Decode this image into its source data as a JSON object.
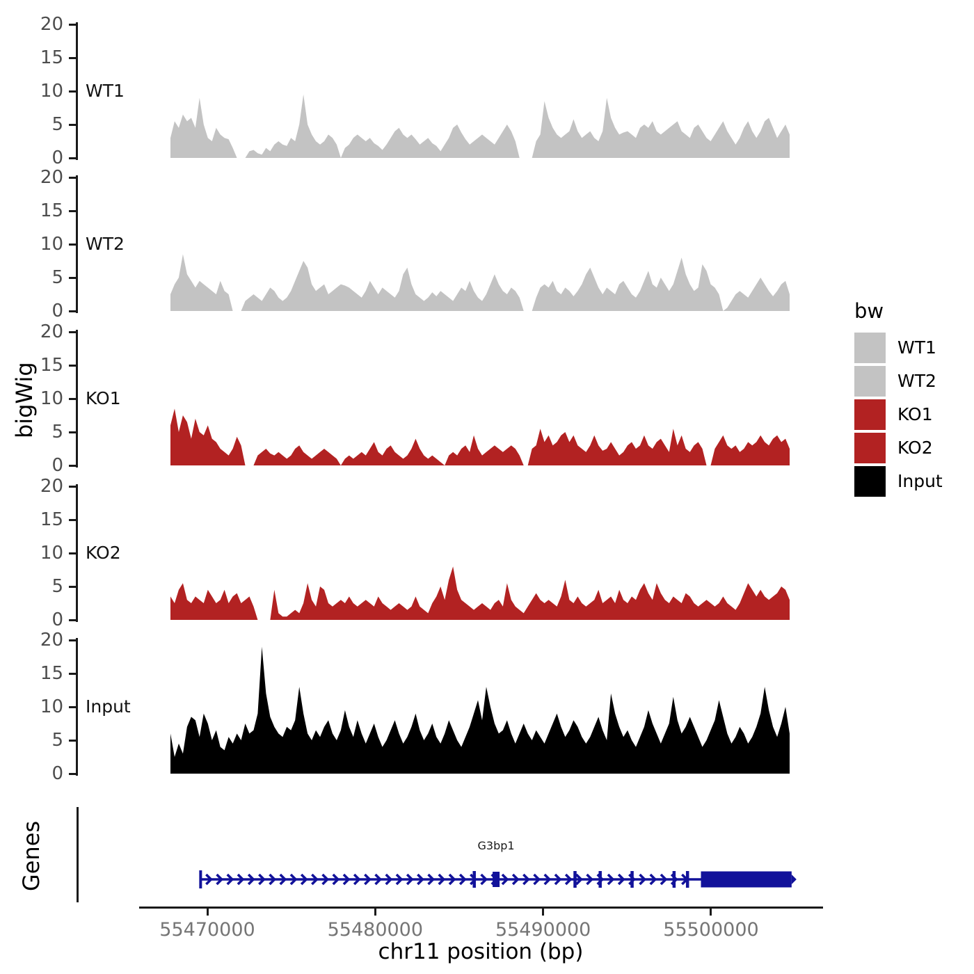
{
  "y_axis": {
    "label": "bigWig",
    "ticks": [
      0,
      5,
      10,
      15,
      20
    ],
    "tick_labels": [
      "0",
      "5",
      "10",
      "15",
      "20"
    ]
  },
  "x_axis": {
    "label": "chr11 position (bp)",
    "ticks": [
      {
        "bp": 55470000,
        "label": "55470000"
      },
      {
        "bp": 55480000,
        "label": "55480000"
      },
      {
        "bp": 55490000,
        "label": "55490000"
      },
      {
        "bp": 55500000,
        "label": "55500000"
      }
    ]
  },
  "genes_panel": {
    "label": "Genes"
  },
  "legend": {
    "title": "bw",
    "entries": [
      {
        "label": "WT1",
        "color": "#C3C3C3"
      },
      {
        "label": "WT2",
        "color": "#C3C3C3"
      },
      {
        "label": "KO1",
        "color": "#B22222"
      },
      {
        "label": "KO2",
        "color": "#B22222"
      },
      {
        "label": "Input",
        "color": "#000000"
      }
    ]
  },
  "colors": {
    "wt": "#C3C3C3",
    "ko": "#B22222",
    "input": "#000000",
    "gene": "#12129A",
    "axis": "#1a1a1a"
  },
  "chart_data": {
    "type": "area",
    "description": "Genome browser bigWig coverage tracks with gene annotation",
    "title": "",
    "xlabel": "chr11 position (bp)",
    "ylabel": "bigWig",
    "x_ticks_bp": [
      55470000,
      55480000,
      55490000,
      55500000
    ],
    "per_track_ylim": [
      0,
      20
    ],
    "y_ticks": [
      0,
      5,
      10,
      15,
      20
    ],
    "signal_region_bp": [
      55467800,
      55504700
    ],
    "tracks": [
      {
        "name": "WT1",
        "color": "#C3C3C3",
        "values": [
          3,
          5.5,
          4.5,
          6.5,
          5.5,
          6,
          4.5,
          9,
          5,
          3,
          2.5,
          4.5,
          3.5,
          3,
          2.8,
          1.5,
          0,
          0,
          0,
          1,
          1.2,
          0.7,
          0.5,
          1.5,
          1,
          2,
          2.5,
          2,
          1.8,
          3,
          2.5,
          5,
          9.5,
          5,
          3.5,
          2.5,
          2,
          2.5,
          3.5,
          3,
          2,
          0,
          1.5,
          2,
          3,
          3.5,
          3,
          2.5,
          3,
          2.2,
          1.8,
          1.2,
          2,
          3,
          4,
          4.5,
          3.5,
          3,
          3.5,
          2.8,
          2,
          2.5,
          3,
          2.2,
          1.8,
          1,
          2,
          3,
          4.5,
          5,
          3.8,
          2.8,
          2,
          2.5,
          3,
          3.5,
          3,
          2.5,
          2,
          3,
          4,
          5,
          4,
          2.5,
          0,
          0,
          0,
          0,
          2.5,
          3.5,
          8.5,
          6,
          4.5,
          3.5,
          3,
          3.5,
          4,
          5.8,
          4,
          3,
          3.5,
          4,
          3,
          2.5,
          4,
          9,
          6,
          4.5,
          3.5,
          3.8,
          4,
          3.5,
          3,
          4.5,
          5,
          4.5,
          5.5,
          4,
          3.5,
          4,
          4.5,
          5,
          5.5,
          4,
          3.5,
          3,
          4.5,
          5,
          4,
          3,
          2.5,
          3.5,
          4.5,
          5.5,
          4,
          3,
          2,
          3,
          4.5,
          5.5,
          4,
          3,
          4,
          5.5,
          6,
          4.5,
          3,
          4,
          5,
          3.5
        ]
      },
      {
        "name": "WT2",
        "color": "#C3C3C3",
        "values": [
          2.5,
          4,
          5,
          8.5,
          5.5,
          4.5,
          3.5,
          4.5,
          4,
          3.5,
          3,
          2.5,
          4.5,
          3,
          2.5,
          0,
          0,
          0,
          1.5,
          2,
          2.5,
          2,
          1.5,
          2.5,
          3.5,
          3,
          2,
          1.5,
          2,
          3,
          4.5,
          6,
          7.5,
          6.5,
          4,
          3,
          3.5,
          4,
          2.5,
          3,
          3.5,
          4,
          3.8,
          3.5,
          3,
          2.5,
          2,
          3,
          4.5,
          3.5,
          2.5,
          3.5,
          3,
          2.5,
          2,
          3,
          5.5,
          6.5,
          4,
          2.5,
          2,
          1.5,
          2,
          2.8,
          2.2,
          3,
          2.5,
          2,
          1.5,
          2.5,
          3.5,
          3,
          4.5,
          3,
          2,
          1.5,
          2.5,
          4,
          5.5,
          4,
          3,
          2.5,
          3.5,
          3,
          2,
          0,
          0,
          0,
          2,
          3.5,
          4,
          3.5,
          4.5,
          3,
          2.5,
          3.5,
          3,
          2.2,
          3,
          4,
          5.5,
          6.5,
          5,
          3.5,
          2.5,
          3.5,
          3,
          2.5,
          4,
          4.5,
          3.5,
          2.5,
          2,
          3,
          4.5,
          6,
          4,
          3.5,
          5,
          4,
          3,
          4,
          6,
          8,
          5.5,
          4,
          3,
          3.5,
          7,
          6,
          4,
          3.5,
          2.5,
          0,
          0.5,
          1.5,
          2.5,
          3,
          2.5,
          2,
          3,
          4,
          5,
          4,
          3,
          2.2,
          3,
          4,
          4.5,
          2.5
        ]
      },
      {
        "name": "KO1",
        "color": "#B22222",
        "values": [
          6,
          8.5,
          5,
          7.5,
          6.5,
          4,
          7,
          5,
          4.5,
          6,
          4,
          3.5,
          2.5,
          2,
          1.5,
          2.5,
          4.3,
          3,
          0,
          0,
          0,
          1.5,
          2,
          2.5,
          1.8,
          1.5,
          2,
          1.5,
          1,
          1.5,
          2.5,
          3,
          2,
          1.5,
          1,
          1.5,
          2,
          2.5,
          2,
          1.5,
          1,
          0,
          1,
          1.5,
          1,
          1.5,
          2,
          1.5,
          2.5,
          3.5,
          2,
          1.5,
          2.5,
          3,
          2,
          1.5,
          1,
          1.5,
          2.5,
          4,
          2.5,
          1.5,
          1,
          1.5,
          1,
          0.5,
          0,
          1.5,
          2,
          1.5,
          2.5,
          3,
          2,
          4.5,
          2.5,
          1.5,
          2,
          2.5,
          3,
          2.5,
          2,
          2.5,
          3,
          2.5,
          1.5,
          0,
          0,
          2.5,
          3,
          5.5,
          3.5,
          4.5,
          3,
          3.5,
          4.5,
          5,
          3.5,
          4.5,
          3,
          2.5,
          2,
          3,
          4.5,
          3,
          2.2,
          2.5,
          3.5,
          2.5,
          1.5,
          2,
          3,
          3.5,
          2.5,
          3,
          4.5,
          3,
          2.5,
          3.5,
          4,
          3,
          2,
          5.5,
          3,
          4.5,
          2.5,
          2,
          3,
          3.5,
          2.5,
          0,
          0,
          2.5,
          3.5,
          4.5,
          3,
          2.5,
          3,
          2,
          2.5,
          3.5,
          3,
          3.5,
          4.5,
          3.5,
          3,
          4,
          4.5,
          3.5,
          4,
          2.5
        ]
      },
      {
        "name": "KO2",
        "color": "#B22222",
        "values": [
          3.5,
          2.5,
          4.5,
          5.5,
          3,
          2.5,
          3.5,
          3,
          2.5,
          4.5,
          3.5,
          2.5,
          3,
          4.5,
          2.5,
          3.5,
          4,
          2.5,
          3,
          3.5,
          2,
          0,
          0,
          0,
          0,
          4.5,
          1,
          0.5,
          0.5,
          1,
          1.5,
          1,
          2.5,
          5.5,
          3,
          2,
          5,
          4.5,
          2.5,
          2,
          2.5,
          3,
          2.5,
          3.5,
          2.5,
          2,
          2.5,
          3,
          2.5,
          2,
          3.5,
          2.5,
          2,
          1.5,
          2,
          2.5,
          2,
          1.5,
          2,
          3.5,
          2,
          1.5,
          1,
          2.5,
          3.5,
          5,
          3,
          6,
          8,
          4.5,
          3,
          2.5,
          2,
          1.5,
          2,
          2.5,
          2,
          1.5,
          2.5,
          3,
          2,
          5.5,
          3,
          2,
          1.5,
          1,
          2,
          3,
          4,
          3,
          2.5,
          3,
          2.5,
          2,
          3.5,
          6,
          3,
          2.5,
          3.5,
          2.5,
          2,
          2.5,
          3,
          4.5,
          2.5,
          3,
          3.5,
          2.5,
          4.5,
          3,
          2.5,
          3.5,
          3,
          4.5,
          5.5,
          4,
          3,
          5.5,
          4,
          3,
          2.5,
          3.5,
          3,
          2.5,
          4,
          3.5,
          2.5,
          2,
          2.5,
          3,
          2.5,
          2,
          2.5,
          3.5,
          2.5,
          2,
          1.5,
          2.5,
          4,
          5.5,
          4.5,
          3.5,
          4.5,
          3.5,
          3,
          3.5,
          4,
          5,
          4.5,
          3
        ]
      },
      {
        "name": "Input",
        "color": "#000000",
        "values": [
          6,
          2.5,
          4.5,
          3,
          7,
          8.5,
          8,
          5.5,
          9,
          7.5,
          5,
          6.5,
          4,
          3.5,
          5.5,
          4.5,
          6,
          5,
          7.5,
          6,
          6.5,
          9,
          19,
          12,
          8.5,
          7,
          6,
          5.5,
          7,
          6.5,
          8,
          13,
          9,
          6,
          5,
          6.5,
          5.5,
          7,
          8,
          6,
          5,
          6.5,
          9.5,
          7,
          5.5,
          8,
          6,
          4.5,
          6,
          7.5,
          5.5,
          4,
          5,
          6.5,
          8,
          6,
          4.5,
          5.5,
          7,
          9,
          6.5,
          5,
          6,
          7.5,
          5.5,
          4.5,
          6,
          8,
          6.5,
          5,
          4,
          5.5,
          7,
          9,
          11,
          8,
          13,
          10,
          7.5,
          6,
          6.5,
          8,
          6,
          4.5,
          6,
          7.5,
          6,
          5,
          6.5,
          5.5,
          4.5,
          6,
          7.5,
          9,
          7,
          5.5,
          6.5,
          8,
          7,
          5.5,
          4.5,
          5.5,
          7,
          8.5,
          6.5,
          5,
          12,
          9,
          7,
          5.5,
          6.5,
          5,
          4,
          5.5,
          7,
          9.5,
          7.5,
          6,
          4.5,
          6,
          7.5,
          11.5,
          8,
          6,
          7,
          8.5,
          7,
          5.5,
          4,
          5,
          6.5,
          8,
          11,
          8.5,
          6,
          4.5,
          5.5,
          7,
          6,
          4.5,
          5.5,
          7,
          9,
          13,
          9.5,
          7,
          5.5,
          7.5,
          10,
          6
        ]
      }
    ],
    "genes_track": {
      "gene": "G3bp1",
      "strand": "+",
      "gene_start_bp": 55469600,
      "gene_end_bp": 55504900,
      "thick_box_bp": [
        55499400,
        55504800
      ],
      "small_box_bp": 55487200,
      "exon_bar_bps": [
        55485900,
        55491900,
        55493400,
        55495300,
        55497800,
        55498600
      ],
      "label_center_bp": 55487200
    }
  }
}
